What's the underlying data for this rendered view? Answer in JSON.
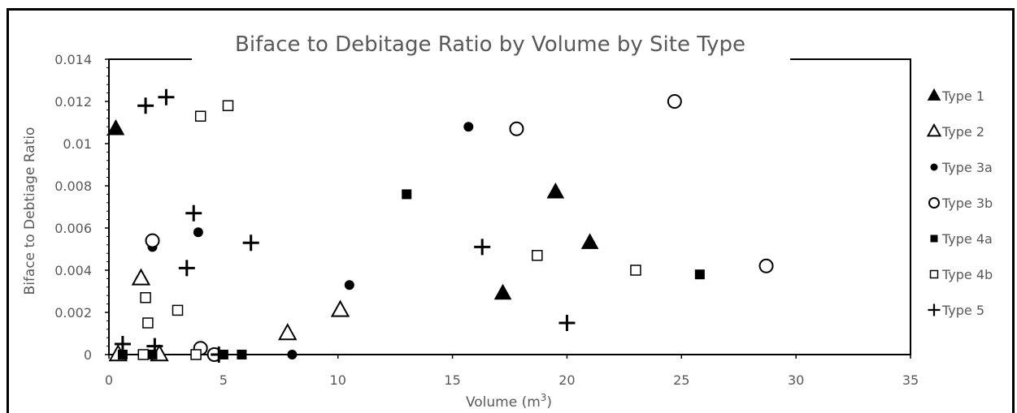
{
  "chart_data": {
    "type": "scatter",
    "title": "Biface to Debitage Ratio by Volume by Site Type",
    "xlabel": "Volume (m",
    "xlabel_sup": "3",
    "xlabel_close": ")",
    "ylabel": "Biface to Debtiage Ratio",
    "xlim": [
      0,
      35
    ],
    "ylim": [
      0,
      0.014
    ],
    "x_ticks": [
      0,
      5,
      10,
      15,
      20,
      25,
      30,
      35
    ],
    "y_ticks": [
      0,
      0.002,
      0.004,
      0.006,
      0.008,
      0.01,
      0.012,
      0.014
    ],
    "x_tick_labels": [
      "0",
      "5",
      "10",
      "15",
      "20",
      "25",
      "30",
      "35"
    ],
    "y_tick_labels": [
      "0",
      "0.002",
      "0.004",
      "0.006",
      "0.008",
      "0.01",
      "0.012",
      "0.014"
    ],
    "legend_position": "right",
    "grid": false,
    "series": [
      {
        "name": "Type 1",
        "marker": "triangle-filled",
        "points": [
          [
            0.3,
            0.0107
          ],
          [
            17.2,
            0.0029
          ],
          [
            19.5,
            0.0077
          ],
          [
            21.0,
            0.0053
          ]
        ]
      },
      {
        "name": "Type 2",
        "marker": "triangle-open",
        "points": [
          [
            0.4,
            0.0
          ],
          [
            1.4,
            0.0036
          ],
          [
            2.2,
            0.0
          ],
          [
            7.8,
            0.001
          ],
          [
            10.1,
            0.0021
          ]
        ]
      },
      {
        "name": "Type 3a",
        "marker": "circle-filled",
        "points": [
          [
            1.9,
            0.0051
          ],
          [
            3.9,
            0.0058
          ],
          [
            8.0,
            0.0
          ],
          [
            10.5,
            0.0033
          ],
          [
            15.7,
            0.0108
          ]
        ]
      },
      {
        "name": "Type 3b",
        "marker": "circle-open",
        "points": [
          [
            1.9,
            0.0054
          ],
          [
            4.0,
            0.0003
          ],
          [
            4.6,
            0.0
          ],
          [
            17.8,
            0.0107
          ],
          [
            24.7,
            0.012
          ],
          [
            28.7,
            0.0042
          ]
        ]
      },
      {
        "name": "Type 4a",
        "marker": "square-filled",
        "points": [
          [
            0.6,
            0.0
          ],
          [
            1.9,
            0.0
          ],
          [
            5.0,
            0.0
          ],
          [
            5.8,
            0.0
          ],
          [
            13.0,
            0.0076
          ],
          [
            25.8,
            0.0038
          ]
        ]
      },
      {
        "name": "Type 4b",
        "marker": "square-open",
        "points": [
          [
            1.5,
            0.0
          ],
          [
            1.6,
            0.0027
          ],
          [
            1.7,
            0.0015
          ],
          [
            3.0,
            0.0021
          ],
          [
            3.8,
            0.0
          ],
          [
            4.0,
            0.0113
          ],
          [
            5.2,
            0.0118
          ],
          [
            18.7,
            0.0047
          ],
          [
            23.0,
            0.004
          ]
        ]
      },
      {
        "name": "Type 5",
        "marker": "plus",
        "points": [
          [
            0.6,
            0.0005
          ],
          [
            1.6,
            0.0118
          ],
          [
            2.0,
            0.0004
          ],
          [
            2.5,
            0.0122
          ],
          [
            3.4,
            0.0041
          ],
          [
            3.7,
            0.0067
          ],
          [
            4.8,
            0.0
          ],
          [
            6.2,
            0.0053
          ],
          [
            16.3,
            0.0051
          ],
          [
            20.0,
            0.0015
          ]
        ]
      }
    ]
  }
}
